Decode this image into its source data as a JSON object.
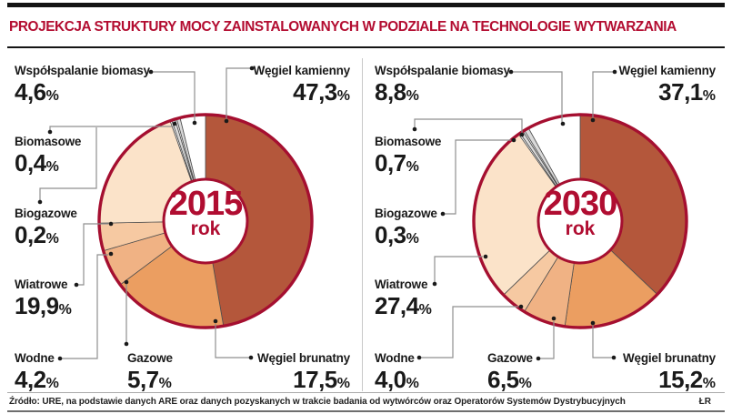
{
  "title": "PROJEKCJA STRUKTURY MOCY ZAINSTALOWANYCH W PODZIALE NA TECHNOLOGIE WYTWARZANIA",
  "ui": {
    "percent_sign": "%"
  },
  "colors": {
    "accent_crimson": "#b00d31",
    "pie_ring": "#a50f30",
    "slice_stroke": "#4f4f4f",
    "callout_line": "#8f8f8f",
    "callout_dot": "#1a1a1a",
    "wegiel_kamienny": "#b4573b",
    "wegiel_brunatny": "#eb9e61",
    "gazowe": "#f0b284",
    "wodne": "#f6c9a2",
    "wiatrowe": "#fbe3c9",
    "biogazowe": "#d9d9d9",
    "biomasowe": "#d9d9d9",
    "wspolspalanie_biomasy": "#ffffff"
  },
  "footer": {
    "source": "Źródło: URE,  na podstawie danych ARE oraz danych pozyskanych w trakcie badania od wytwórców oraz Operatorów Systemów Dystrybucyjnych",
    "credit": "ŁR"
  },
  "chart_data": [
    {
      "type": "pie",
      "title": "2015 rok",
      "center": {
        "year": "2015",
        "unit": "rok"
      },
      "start_angle": "12-oclock",
      "direction": "clockwise",
      "slices": [
        {
          "name": "Węgiel kamienny",
          "pct": 47.3,
          "display": "47,3",
          "color": "#b4573b"
        },
        {
          "name": "Węgiel brunatny",
          "pct": 17.5,
          "display": "17,5",
          "color": "#eb9e61"
        },
        {
          "name": "Gazowe",
          "pct": 5.7,
          "display": "5,7",
          "color": "#f0b284"
        },
        {
          "name": "Wodne",
          "pct": 4.2,
          "display": "4,2",
          "color": "#f6c9a2"
        },
        {
          "name": "Wiatrowe",
          "pct": 19.9,
          "display": "19,9",
          "color": "#fbe3c9"
        },
        {
          "name": "Biogazowe",
          "pct": 0.2,
          "display": "0,2",
          "color": "#d9d9d9"
        },
        {
          "name": "Biomasowe",
          "pct": 0.4,
          "display": "0,4",
          "color": "#d9d9d9"
        },
        {
          "name": "Współspalanie biomasy",
          "pct": 4.6,
          "display": "4,6",
          "color": "#ffffff"
        }
      ]
    },
    {
      "type": "pie",
      "title": "2030 rok",
      "center": {
        "year": "2030",
        "unit": "rok"
      },
      "start_angle": "12-oclock",
      "direction": "clockwise",
      "slices": [
        {
          "name": "Węgiel kamienny",
          "pct": 37.1,
          "display": "37,1",
          "color": "#b4573b"
        },
        {
          "name": "Węgiel brunatny",
          "pct": 15.2,
          "display": "15,2",
          "color": "#eb9e61"
        },
        {
          "name": "Gazowe",
          "pct": 6.5,
          "display": "6,5",
          "color": "#f0b284"
        },
        {
          "name": "Wodne",
          "pct": 4.0,
          "display": "4,0",
          "color": "#f6c9a2"
        },
        {
          "name": "Wiatrowe",
          "pct": 27.4,
          "display": "27,4",
          "color": "#fbe3c9"
        },
        {
          "name": "Biogazowe",
          "pct": 0.3,
          "display": "0,3",
          "color": "#d9d9d9"
        },
        {
          "name": "Biomasowe",
          "pct": 0.7,
          "display": "0,7",
          "color": "#d9d9d9"
        },
        {
          "name": "Współspalanie biomasy",
          "pct": 8.8,
          "display": "8,8",
          "color": "#ffffff"
        }
      ]
    }
  ]
}
